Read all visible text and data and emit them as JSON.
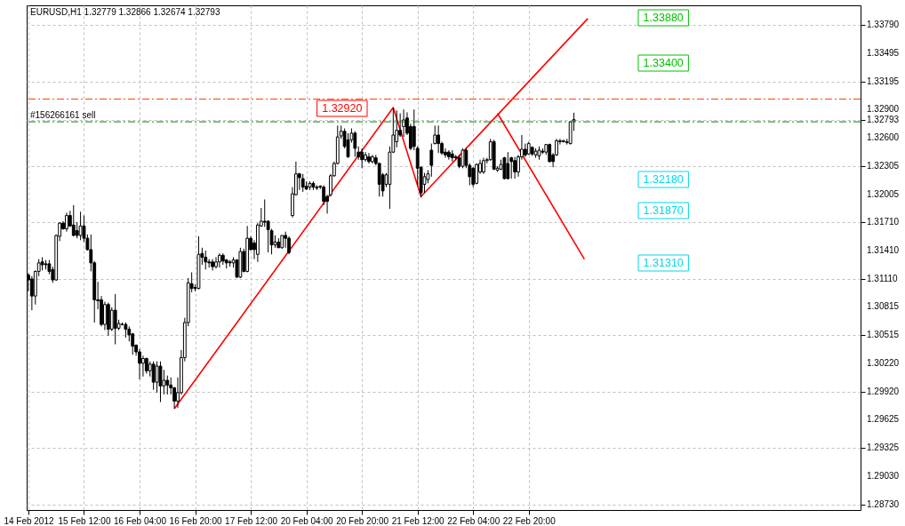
{
  "chart_data": {
    "type": "candlestick",
    "title": "EURUSD,H1  1.32779 1.32866 1.32674 1.32793",
    "categories": [
      "14 Feb 2012",
      null,
      null,
      null,
      null,
      null,
      null,
      null,
      null,
      null,
      null,
      null,
      null,
      null,
      null,
      null,
      "15 Feb 12:00",
      null,
      null,
      null,
      null,
      null,
      null,
      null,
      null,
      null,
      null,
      null,
      null,
      null,
      null,
      null,
      "16 Feb 04:00",
      null,
      null,
      null,
      null,
      null,
      null,
      null,
      null,
      null,
      null,
      null,
      null,
      null,
      null,
      null,
      "16 Feb 20:00",
      null,
      null,
      null,
      null,
      null,
      null,
      null,
      null,
      null,
      null,
      null,
      null,
      null,
      null,
      null,
      "17 Feb 12:00",
      null,
      null,
      null,
      null,
      null,
      null,
      null,
      null,
      null,
      null,
      null,
      null,
      null,
      null,
      null,
      "20 Feb 04:00",
      null,
      null,
      null,
      null,
      null,
      null,
      null,
      null,
      null,
      null,
      null,
      null,
      null,
      null,
      null,
      "20 Feb 20:00",
      null,
      null,
      null,
      null,
      null,
      null,
      null,
      null,
      null,
      null,
      null,
      null,
      null,
      null,
      null,
      "21 Feb 12:00",
      null,
      null,
      null,
      null,
      null,
      null,
      null,
      null,
      null,
      null,
      null,
      null,
      null,
      null,
      null,
      "22 Feb 04:00",
      null,
      null,
      null,
      null,
      null,
      null,
      null,
      null,
      null,
      null,
      null,
      null,
      null,
      null,
      null,
      "22 Feb 20:00",
      null,
      null,
      null,
      null,
      null,
      null,
      null,
      null,
      null,
      null,
      null,
      null,
      null,
      null,
      null,
      null,
      null,
      null,
      null,
      null,
      null,
      null,
      null,
      null,
      null,
      null,
      null,
      null,
      null,
      null,
      null,
      null,
      null,
      null,
      null,
      null,
      null,
      null,
      null,
      null,
      null,
      null,
      null,
      null,
      null,
      null,
      null,
      null,
      null,
      null,
      null,
      null,
      null,
      null,
      null,
      null,
      null,
      null,
      null,
      null,
      null,
      null,
      null,
      null,
      null,
      null,
      null,
      null,
      null,
      null,
      null,
      null,
      null,
      null,
      null,
      null,
      null,
      null,
      null,
      null,
      null,
      null,
      null,
      null,
      null,
      null,
      null,
      null,
      null,
      null,
      null,
      null,
      null,
      null,
      null
    ],
    "series": [
      {
        "color": "#000000",
        "ohlc": [
          [
            1.3115,
            1.3117,
            1.3098,
            1.311
          ],
          [
            1.3111,
            1.3114,
            1.3078,
            1.3093
          ],
          [
            1.3093,
            1.312,
            1.3084,
            1.3119
          ],
          [
            1.3119,
            1.3132,
            1.3114,
            1.3128
          ],
          [
            1.3129,
            1.3134,
            1.312,
            1.3126
          ],
          [
            1.3127,
            1.3131,
            1.3121,
            1.3126
          ],
          [
            1.3127,
            1.3131,
            1.3116,
            1.3119
          ],
          [
            1.3121,
            1.3124,
            1.3107,
            1.311
          ],
          [
            1.311,
            1.3158,
            1.3109,
            1.3157
          ],
          [
            1.3156,
            1.3171,
            1.3151,
            1.317
          ],
          [
            1.317,
            1.3172,
            1.3163,
            1.3164
          ],
          [
            1.3164,
            1.3181,
            1.3161,
            1.3178
          ],
          [
            1.3178,
            1.3183,
            1.3166,
            1.3167
          ],
          [
            1.3168,
            1.3189,
            1.3156,
            1.3157
          ],
          [
            1.3162,
            1.3171,
            1.3154,
            1.3157
          ],
          [
            1.3157,
            1.3182,
            1.3152,
            1.3167
          ],
          [
            1.3167,
            1.3178,
            1.315,
            1.3154
          ],
          [
            1.3154,
            1.3158,
            1.3141,
            1.3142
          ],
          [
            1.3142,
            1.3158,
            1.3119,
            1.3128
          ],
          [
            1.3128,
            1.313,
            1.3065,
            1.3089
          ],
          [
            1.3089,
            1.3108,
            1.3079,
            1.3088
          ],
          [
            1.3089,
            1.3093,
            1.3061,
            1.3063
          ],
          [
            1.3063,
            1.3087,
            1.3057,
            1.3084
          ],
          [
            1.3084,
            1.3086,
            1.3051,
            1.3058
          ],
          [
            1.3058,
            1.3081,
            1.3056,
            1.3078
          ],
          [
            1.3078,
            1.3095,
            1.3042,
            1.3059
          ],
          [
            1.3059,
            1.3068,
            1.3057,
            1.3064
          ],
          [
            1.3063,
            1.3065,
            1.3062,
            1.3063
          ],
          [
            1.3063,
            1.3065,
            1.3049,
            1.3058
          ],
          [
            1.3058,
            1.3061,
            1.3045,
            1.3052
          ],
          [
            1.3053,
            1.3054,
            1.3031,
            1.304
          ],
          [
            1.3041,
            1.3042,
            1.303,
            1.3034
          ],
          [
            1.3034,
            1.3037,
            1.3005,
            1.3022
          ],
          [
            1.3022,
            1.303,
            1.3008,
            1.3027
          ],
          [
            1.3027,
            1.3028,
            1.3011,
            1.3014
          ],
          [
            1.3014,
            1.3024,
            1.3008,
            1.3021
          ],
          [
            1.3021,
            1.3024,
            1.2994,
            1.3002
          ],
          [
            1.3002,
            1.3024,
            1.2991,
            1.3019
          ],
          [
            1.3019,
            1.3024,
            1.2981,
            1.2998
          ],
          [
            1.2998,
            1.3015,
            1.2989,
            1.3004
          ],
          [
            1.3004,
            1.3009,
            1.2989,
            1.2999
          ],
          [
            1.2999,
            1.3007,
            1.2989,
            1.2996
          ],
          [
            1.2996,
            1.2997,
            1.2974,
            1.2982
          ],
          [
            1.2982,
            1.3007,
            1.2975,
            1.2991
          ],
          [
            1.2991,
            1.3036,
            1.2989,
            1.3028
          ],
          [
            1.3028,
            1.307,
            1.3024,
            1.3065
          ],
          [
            1.3065,
            1.3112,
            1.3061,
            1.3107
          ],
          [
            1.3106,
            1.3118,
            1.3097,
            1.3101
          ],
          [
            1.3102,
            1.3105,
            1.3098,
            1.3101
          ],
          [
            1.3101,
            1.3156,
            1.31,
            1.3137
          ],
          [
            1.3138,
            1.3144,
            1.3126,
            1.3134
          ],
          [
            1.3134,
            1.3141,
            1.3121,
            1.3129
          ],
          [
            1.3129,
            1.3132,
            1.3123,
            1.3128
          ],
          [
            1.3129,
            1.3132,
            1.312,
            1.3124
          ],
          [
            1.3124,
            1.3134,
            1.3122,
            1.3129
          ],
          [
            1.3129,
            1.3138,
            1.3123,
            1.3136
          ],
          [
            1.3136,
            1.3138,
            1.3126,
            1.313
          ],
          [
            1.3131,
            1.3132,
            1.3122,
            1.3128
          ],
          [
            1.3129,
            1.3131,
            1.3124,
            1.3128
          ],
          [
            1.3128,
            1.3134,
            1.3123,
            1.3131
          ],
          [
            1.3131,
            1.3132,
            1.3112,
            1.3113
          ],
          [
            1.3113,
            1.3144,
            1.3112,
            1.314
          ],
          [
            1.314,
            1.3143,
            1.3118,
            1.3119
          ],
          [
            1.3119,
            1.3167,
            1.3118,
            1.3154
          ],
          [
            1.3154,
            1.3156,
            1.3141,
            1.3142
          ],
          [
            1.3149,
            1.3152,
            1.3132,
            1.3142
          ],
          [
            1.3137,
            1.317,
            1.3129,
            1.3168
          ],
          [
            1.3167,
            1.3186,
            1.3166,
            1.3172
          ],
          [
            1.3172,
            1.3195,
            1.3166,
            1.3171
          ],
          [
            1.3172,
            1.3173,
            1.3139,
            1.3163
          ],
          [
            1.3162,
            1.3164,
            1.3137,
            1.3147
          ],
          [
            1.3147,
            1.3157,
            1.3144,
            1.315
          ],
          [
            1.315,
            1.3154,
            1.3144,
            1.3144
          ],
          [
            1.3144,
            1.3157,
            1.3143,
            1.3157
          ],
          [
            1.3157,
            1.3161,
            1.3144,
            1.3154
          ],
          [
            1.3154,
            1.3156,
            1.3137,
            1.3139
          ],
          [
            1.3178,
            1.3208,
            1.3176,
            1.3201
          ],
          [
            1.32,
            1.3235,
            1.3199,
            1.3222
          ],
          [
            1.3222,
            1.3223,
            1.3205,
            1.3218
          ],
          [
            1.3217,
            1.3222,
            1.3203,
            1.3208
          ],
          [
            1.3209,
            1.3214,
            1.3205,
            1.3206
          ],
          [
            1.3208,
            1.3214,
            1.3205,
            1.3212
          ],
          [
            1.3212,
            1.3214,
            1.3205,
            1.3208
          ],
          [
            1.3208,
            1.321,
            1.3205,
            1.3207
          ],
          [
            1.3208,
            1.321,
            1.3206,
            1.3209
          ],
          [
            1.3208,
            1.321,
            1.3189,
            1.3193
          ],
          [
            1.3198,
            1.32,
            1.318,
            1.3193
          ],
          [
            1.32,
            1.3222,
            1.3198,
            1.322
          ],
          [
            1.322,
            1.3235,
            1.3219,
            1.3233
          ],
          [
            1.3233,
            1.3273,
            1.3232,
            1.3261
          ],
          [
            1.3262,
            1.3273,
            1.3259,
            1.3267
          ],
          [
            1.3267,
            1.327,
            1.3249,
            1.3251
          ],
          [
            1.3258,
            1.3265,
            1.3239,
            1.324
          ],
          [
            1.3258,
            1.327,
            1.3255,
            1.3265
          ],
          [
            1.3265,
            1.3267,
            1.324,
            1.3249
          ],
          [
            1.3245,
            1.3251,
            1.3237,
            1.324
          ],
          [
            1.3245,
            1.3249,
            1.3228,
            1.3237
          ],
          [
            1.3237,
            1.3245,
            1.3235,
            1.3242
          ],
          [
            1.324,
            1.3244,
            1.3233,
            1.3235
          ],
          [
            1.3235,
            1.3242,
            1.3233,
            1.324
          ],
          [
            1.3239,
            1.3242,
            1.3231,
            1.3233
          ],
          [
            1.3233,
            1.3234,
            1.3198,
            1.3211
          ],
          [
            1.3221,
            1.3223,
            1.3198,
            1.3204
          ],
          [
            1.3211,
            1.3223,
            1.3208,
            1.3221
          ],
          [
            1.3211,
            1.3251,
            1.3185,
            1.3245
          ],
          [
            1.3245,
            1.3292,
            1.3244,
            1.3263
          ],
          [
            1.3256,
            1.3289,
            1.325,
            1.3268
          ],
          [
            1.3268,
            1.3286,
            1.3261,
            1.3263
          ],
          [
            1.3272,
            1.329,
            1.3261,
            1.3279
          ],
          [
            1.3281,
            1.3287,
            1.3263,
            1.3265
          ],
          [
            1.3272,
            1.3275,
            1.3247,
            1.3249
          ],
          [
            1.3272,
            1.329,
            1.3247,
            1.3251
          ],
          [
            1.3249,
            1.3251,
            1.321,
            1.3228
          ],
          [
            1.3229,
            1.323,
            1.3197,
            1.3202
          ],
          [
            1.3211,
            1.3223,
            1.3202,
            1.3219
          ],
          [
            1.3216,
            1.3226,
            1.3212,
            1.3222
          ],
          [
            1.3247,
            1.3254,
            1.3219,
            1.3231
          ],
          [
            1.3254,
            1.3273,
            1.3253,
            1.3263
          ],
          [
            1.3263,
            1.3273,
            1.3244,
            1.3254
          ],
          [
            1.3254,
            1.3256,
            1.3242,
            1.3244
          ],
          [
            1.3245,
            1.3249,
            1.3239,
            1.3242
          ],
          [
            1.3245,
            1.3247,
            1.3237,
            1.324
          ],
          [
            1.3243,
            1.3247,
            1.3235,
            1.3239
          ],
          [
            1.324,
            1.3242,
            1.3237,
            1.3239
          ],
          [
            1.3239,
            1.3242,
            1.3228,
            1.323
          ],
          [
            1.323,
            1.3249,
            1.3228,
            1.3247
          ],
          [
            1.3247,
            1.3249,
            1.3228,
            1.3231
          ],
          [
            1.3231,
            1.3233,
            1.321,
            1.3219
          ],
          [
            1.3228,
            1.3229,
            1.3208,
            1.3211
          ],
          [
            1.3212,
            1.3233,
            1.3211,
            1.3232
          ],
          [
            1.3224,
            1.3237,
            1.3222,
            1.3233
          ],
          [
            1.3224,
            1.3239,
            1.3222,
            1.3236
          ],
          [
            1.3236,
            1.3239,
            1.3233,
            1.3237
          ],
          [
            1.3237,
            1.3259,
            1.3236,
            1.3256
          ],
          [
            1.3256,
            1.3258,
            1.3226,
            1.3227
          ],
          [
            1.3226,
            1.323,
            1.3224,
            1.3228
          ],
          [
            1.3227,
            1.3237,
            1.3226,
            1.3232
          ],
          [
            1.3239,
            1.324,
            1.3216,
            1.3217
          ],
          [
            1.3233,
            1.3245,
            1.3216,
            1.3217
          ],
          [
            1.3239,
            1.324,
            1.3217,
            1.3235
          ],
          [
            1.3236,
            1.324,
            1.3217,
            1.3224
          ],
          [
            1.3224,
            1.3242,
            1.3219,
            1.324
          ],
          [
            1.324,
            1.3263,
            1.3237,
            1.3248
          ],
          [
            1.3248,
            1.3254,
            1.324,
            1.3242
          ],
          [
            1.3243,
            1.3256,
            1.3242,
            1.3254
          ],
          [
            1.325,
            1.3251,
            1.3241,
            1.3243
          ],
          [
            1.3242,
            1.3249,
            1.3239,
            1.3246
          ],
          [
            1.3241,
            1.3251,
            1.3237,
            1.3247
          ],
          [
            1.3246,
            1.3249,
            1.3243,
            1.3245
          ],
          [
            1.3245,
            1.3253,
            1.3242,
            1.3253
          ],
          [
            1.3253,
            1.3254,
            1.3234,
            1.3235
          ],
          [
            1.3242,
            1.3244,
            1.3229,
            1.3235
          ],
          [
            1.3242,
            1.3259,
            1.3241,
            1.3257
          ],
          [
            1.3256,
            1.3259,
            1.3253,
            1.3257
          ],
          [
            1.3256,
            1.3258,
            1.3255,
            1.3257
          ],
          [
            1.3255,
            1.3259,
            1.3253,
            1.3256
          ],
          [
            1.3254,
            1.3277,
            1.3253,
            1.3277
          ],
          [
            1.32779,
            1.32866,
            1.32674,
            1.32793
          ],
          null,
          null,
          null,
          null,
          null,
          null,
          null,
          null,
          null,
          null,
          null,
          null,
          null,
          null,
          null,
          null,
          null,
          null,
          null,
          null,
          null,
          null,
          null,
          null,
          null,
          null,
          null,
          null,
          null,
          null,
          null,
          null,
          null,
          null,
          null,
          null,
          null,
          null,
          null,
          null,
          null,
          null,
          null,
          null,
          null,
          null,
          null,
          null,
          null,
          null,
          null,
          null,
          null,
          null,
          null,
          null,
          null,
          null,
          null,
          null,
          null,
          null,
          null,
          null,
          null,
          null,
          null,
          null,
          null,
          null,
          null,
          null,
          null,
          null,
          null,
          null,
          null,
          null,
          null,
          null,
          null,
          null
        ]
      },
      {
        "type": "line",
        "color": "#ff0000",
        "values": [
          null,
          null,
          null,
          null,
          null,
          null,
          null,
          null,
          null,
          null,
          null,
          null,
          null,
          null,
          null,
          null,
          null,
          null,
          null,
          null,
          null,
          null,
          null,
          null,
          null,
          null,
          null,
          null,
          null,
          null,
          null,
          null,
          null,
          null,
          null,
          null,
          null,
          null,
          null,
          null,
          null,
          null,
          1.2974,
          null,
          null,
          null,
          null,
          null,
          null,
          null,
          null,
          null,
          null,
          null,
          null,
          null,
          null,
          null,
          null,
          null,
          null,
          null,
          null,
          null,
          null,
          null,
          null,
          null,
          null,
          null,
          null,
          null,
          null,
          null,
          null,
          null,
          null,
          null,
          null,
          null,
          null,
          null,
          null,
          null,
          null,
          null,
          null,
          null,
          null,
          null,
          null,
          null,
          null,
          null,
          null,
          null,
          null,
          null,
          null,
          null,
          null,
          null,
          null,
          null,
          null,
          1.3292,
          null,
          null,
          null,
          null,
          null,
          null,
          null,
          1.3198,
          null,
          null,
          null,
          null,
          null,
          null,
          null,
          null,
          null,
          null,
          null,
          null,
          null,
          null,
          null,
          null,
          null,
          null,
          null,
          null,
          null,
          null,
          null,
          null,
          null,
          null,
          null,
          null,
          null,
          null,
          null,
          null,
          null,
          null,
          null,
          null,
          null,
          null,
          null,
          null,
          null,
          null,
          null,
          null,
          null,
          null,
          null,
          1.3386,
          null,
          null,
          null,
          null,
          null,
          null,
          null,
          null,
          null,
          null,
          null,
          null,
          null,
          null,
          null,
          null,
          null,
          null,
          null,
          null,
          null,
          null,
          null,
          null,
          null,
          null,
          null,
          null,
          null,
          null,
          null,
          null,
          null,
          null,
          null,
          null,
          null,
          null,
          null,
          null,
          null,
          null,
          null,
          null,
          null,
          null,
          null,
          null,
          null,
          null,
          null,
          null,
          null,
          null,
          null,
          null,
          null,
          null,
          null,
          null,
          null,
          null,
          null,
          null,
          null,
          null,
          null,
          null,
          null,
          null,
          null,
          null,
          null,
          null,
          null,
          null,
          null,
          null
        ]
      },
      {
        "type": "line",
        "color": "#ff0000",
        "values": [
          null,
          null,
          null,
          null,
          null,
          null,
          null,
          null,
          null,
          null,
          null,
          null,
          null,
          null,
          null,
          null,
          null,
          null,
          null,
          null,
          null,
          null,
          null,
          null,
          null,
          null,
          null,
          null,
          null,
          null,
          null,
          null,
          null,
          null,
          null,
          null,
          null,
          null,
          null,
          null,
          null,
          null,
          null,
          null,
          null,
          null,
          null,
          null,
          null,
          null,
          null,
          null,
          null,
          null,
          null,
          null,
          null,
          null,
          null,
          null,
          null,
          null,
          null,
          null,
          null,
          null,
          null,
          null,
          null,
          null,
          null,
          null,
          null,
          null,
          null,
          null,
          null,
          null,
          null,
          null,
          null,
          null,
          null,
          null,
          null,
          null,
          null,
          null,
          null,
          null,
          null,
          null,
          null,
          null,
          null,
          null,
          null,
          null,
          null,
          null,
          null,
          null,
          null,
          null,
          null,
          null,
          null,
          null,
          null,
          null,
          null,
          null,
          null,
          null,
          null,
          null,
          null,
          null,
          null,
          null,
          null,
          null,
          null,
          null,
          null,
          null,
          null,
          null,
          null,
          null,
          null,
          null,
          null,
          null,
          null,
          1.3286,
          null,
          null,
          null,
          null,
          null,
          null,
          null,
          null,
          null,
          null,
          null,
          null,
          null,
          null,
          null,
          null,
          null,
          null,
          null,
          null,
          null,
          null,
          null,
          null,
          1.3132,
          null,
          null,
          null,
          null,
          null,
          null,
          null,
          null,
          null,
          null,
          null,
          null,
          null,
          null,
          null,
          null,
          null,
          null,
          null,
          null,
          null,
          null,
          null,
          null,
          null,
          null,
          null,
          null,
          null,
          null,
          null,
          null,
          null,
          null,
          null,
          null,
          null,
          null,
          null,
          null,
          null,
          null,
          null,
          null,
          null,
          null,
          null,
          null,
          null,
          null,
          null,
          null,
          null,
          null,
          null,
          null,
          null,
          null,
          null,
          null,
          null,
          null,
          null,
          null,
          null,
          null,
          null,
          null,
          null,
          null,
          null,
          null,
          null,
          null,
          null,
          null,
          null,
          null,
          null
        ]
      }
    ],
    "ylim": [
      1.2867,
      1.34
    ],
    "yticks": [
      {
        "value": 1.3379,
        "label": "1.33790"
      },
      1.33495,
      1.33195,
      {
        "value": 1.329,
        "label": "1.32900"
      },
      1.32793,
      {
        "value": 1.326,
        "label": "1.32600"
      },
      1.32305,
      1.32005,
      {
        "value": 1.3171,
        "label": "1.31710"
      },
      {
        "value": 1.3141,
        "label": "1.31410"
      },
      {
        "value": 1.3111,
        "label": "1.31110"
      },
      1.30815,
      1.30515,
      {
        "value": 1.3022,
        "label": "1.30220"
      },
      {
        "value": 1.2992,
        "label": "1.29920"
      },
      1.29625,
      1.29325,
      {
        "value": 1.2903,
        "label": "1.29030"
      },
      {
        "value": 1.2873,
        "label": "1.28730"
      }
    ],
    "ref_lines": [
      {
        "axis": "y",
        "value": 1.3301,
        "color": "#ff4500",
        "line_style": "dashed"
      },
      {
        "axis": "y",
        "value": 1.3277,
        "label": "#156266161 sell",
        "color": "#008000",
        "line_style": "dashed"
      }
    ],
    "annotations": [
      "1.32920",
      "1.33880",
      "1.33400",
      "1.32180",
      "1.31870",
      "1.31310"
    ],
    "grid": true
  }
}
